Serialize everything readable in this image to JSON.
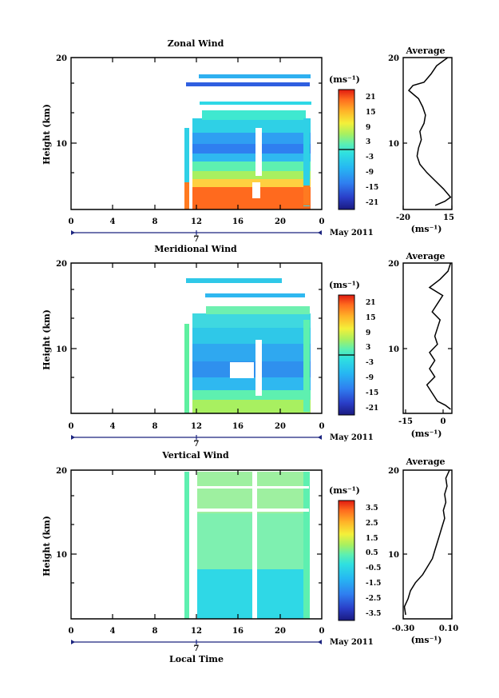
{
  "figure": {
    "xlabel": "Local Time",
    "date_label": "May 2011",
    "day_label": "7",
    "avg_unit": "(ms⁻¹)",
    "cbar_unit": "(ms⁻¹)",
    "ylabel": "Height (km)"
  },
  "chart_data": [
    {
      "type": "heatmap",
      "title": "Zonal Wind",
      "xlabel": "Local Time",
      "ylabel": "Height (km)",
      "xticks": [
        "0",
        "4",
        "8",
        "12",
        "16",
        "20",
        "0"
      ],
      "x_range": [
        0,
        24
      ],
      "yticks": [
        "10",
        "20"
      ],
      "y_range": [
        1.5,
        20
      ],
      "data_x_range": [
        10.8,
        23.8
      ],
      "colorbar": {
        "unit": "(ms⁻¹)",
        "ticks": [
          "21",
          "15",
          "9",
          "3",
          "-3",
          "-9",
          "-15",
          "-21"
        ],
        "range": [
          -24,
          24
        ]
      },
      "profile_wind_vs_height": [
        [
          3.0,
          2
        ],
        [
          10.0,
          2.5
        ],
        [
          14.0,
          3
        ],
        [
          9.0,
          4
        ],
        [
          3.0,
          5
        ],
        [
          -3.0,
          6
        ],
        [
          -8.0,
          7
        ],
        [
          -10.0,
          8
        ],
        [
          -9.0,
          9
        ],
        [
          -7.0,
          10
        ],
        [
          -8.0,
          11
        ],
        [
          -5.0,
          12
        ],
        [
          -4.0,
          13
        ],
        [
          -6.0,
          14
        ],
        [
          -9.0,
          15
        ],
        [
          -16.0,
          16
        ],
        [
          -13.0,
          16.6
        ],
        [
          -5.0,
          17
        ],
        [
          0.0,
          18
        ],
        [
          4.0,
          19
        ],
        [
          12.0,
          20
        ]
      ],
      "profile": {
        "title": "Average",
        "unit": "(ms⁻¹)",
        "xticks": [
          "-20",
          "15"
        ],
        "x_range": [
          -20,
          15
        ],
        "yticks": [
          "10",
          "20"
        ]
      }
    },
    {
      "type": "heatmap",
      "title": "Meridional Wind",
      "xlabel": "Local Time",
      "ylabel": "Height (km)",
      "xticks": [
        "0",
        "4",
        "8",
        "12",
        "16",
        "20",
        "0"
      ],
      "x_range": [
        0,
        24
      ],
      "yticks": [
        "10",
        "20"
      ],
      "y_range": [
        1.5,
        20
      ],
      "data_x_range": [
        10.8,
        23.8
      ],
      "colorbar": {
        "unit": "(ms⁻¹)",
        "ticks": [
          "21",
          "15",
          "9",
          "3",
          "-3",
          "-9",
          "-15",
          "-21"
        ],
        "range": [
          -24,
          24
        ]
      },
      "profile_wind_vs_height": [
        [
          2.0,
          2
        ],
        [
          0.0,
          2.5
        ],
        [
          -3.0,
          3
        ],
        [
          -5.0,
          4
        ],
        [
          -7.0,
          5
        ],
        [
          -4.0,
          6
        ],
        [
          -6.0,
          7
        ],
        [
          -4.0,
          8
        ],
        [
          -6.0,
          9
        ],
        [
          -3.0,
          10
        ],
        [
          -4.0,
          11
        ],
        [
          -3.0,
          12
        ],
        [
          -2.0,
          13
        ],
        [
          -5.0,
          14
        ],
        [
          -3.0,
          15
        ],
        [
          -1.0,
          16
        ],
        [
          -6.0,
          17
        ],
        [
          -2.0,
          18
        ],
        [
          1.0,
          19
        ],
        [
          2.0,
          20
        ]
      ],
      "profile": {
        "title": "Average",
        "unit": "(ms⁻¹)",
        "xticks": [
          "-15",
          "0"
        ],
        "x_range": [
          -16,
          2.5
        ],
        "yticks": [
          "10",
          "20"
        ]
      }
    },
    {
      "type": "heatmap",
      "title": "Vertical Wind",
      "xlabel": "Local Time",
      "ylabel": "Height (km)",
      "xticks": [
        "0",
        "4",
        "8",
        "12",
        "16",
        "20",
        "0"
      ],
      "x_range": [
        0,
        24
      ],
      "yticks": [
        "10",
        "20"
      ],
      "y_range": [
        1.5,
        20
      ],
      "data_x_range": [
        10.8,
        23.8
      ],
      "colorbar": {
        "unit": "(ms⁻¹)",
        "ticks": [
          "3.5",
          "2.5",
          "1.5",
          "0.5",
          "-0.5",
          "-1.5",
          "-2.5",
          "-3.5"
        ],
        "range": [
          -4,
          4
        ]
      },
      "profile_wind_vs_height": [
        [
          -0.28,
          2
        ],
        [
          -0.29,
          3
        ],
        [
          -0.26,
          4
        ],
        [
          -0.24,
          5
        ],
        [
          -0.2,
          6
        ],
        [
          -0.14,
          7
        ],
        [
          -0.1,
          8
        ],
        [
          -0.06,
          9
        ],
        [
          -0.04,
          10
        ],
        [
          -0.02,
          11
        ],
        [
          0.0,
          12
        ],
        [
          0.02,
          13
        ],
        [
          0.04,
          14
        ],
        [
          0.03,
          15
        ],
        [
          0.05,
          16
        ],
        [
          0.04,
          17
        ],
        [
          0.06,
          18
        ],
        [
          0.05,
          19
        ],
        [
          0.08,
          20
        ]
      ],
      "profile": {
        "title": "Average",
        "unit": "(ms⁻¹)",
        "xticks": [
          "-0.30",
          "0.10"
        ],
        "x_range": [
          -0.3,
          0.1
        ],
        "yticks": [
          "10",
          "20"
        ]
      }
    }
  ]
}
